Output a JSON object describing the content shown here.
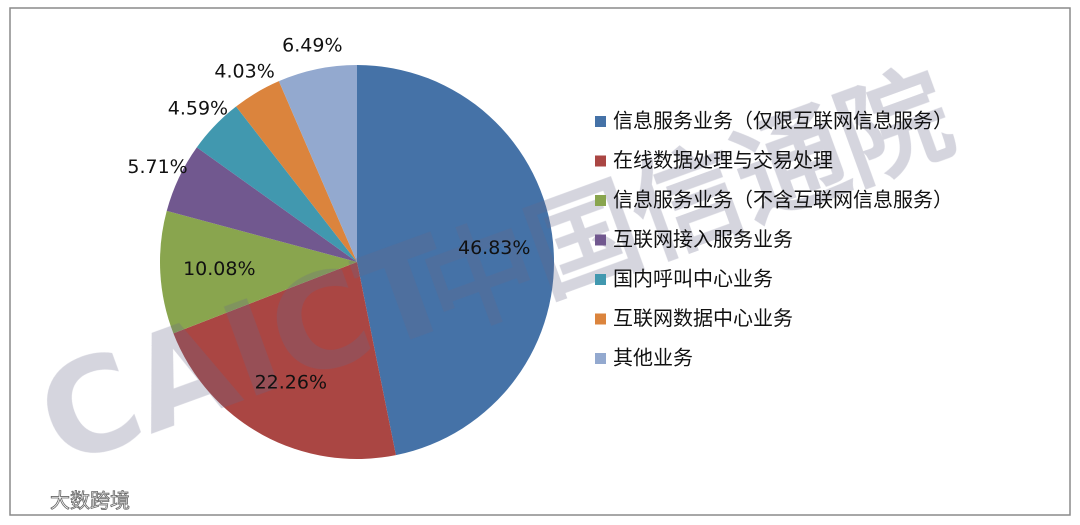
{
  "chart_data": {
    "type": "pie",
    "categories": [
      "信息服务业务（仅限互联网信息服务）",
      "在线数据处理与交易处理",
      "信息服务业务（不含互联网信息服务）",
      "互联网接入服务业务",
      "国内呼叫中心业务",
      "互联网数据中心业务",
      "其他业务"
    ],
    "values": [
      46.83,
      22.26,
      10.08,
      5.71,
      4.59,
      4.03,
      6.49
    ],
    "value_labels": [
      "46.83%",
      "22.26%",
      "10.08%",
      "5.71%",
      "4.59%",
      "4.03%",
      "6.49%"
    ],
    "colors": [
      "#4572a7",
      "#aa4643",
      "#89a54e",
      "#71588f",
      "#4198af",
      "#db843d",
      "#93a9cf"
    ],
    "legend": "right",
    "watermark": [
      "CAICT",
      "中国信通院"
    ],
    "source_mark": "大数跨境"
  }
}
